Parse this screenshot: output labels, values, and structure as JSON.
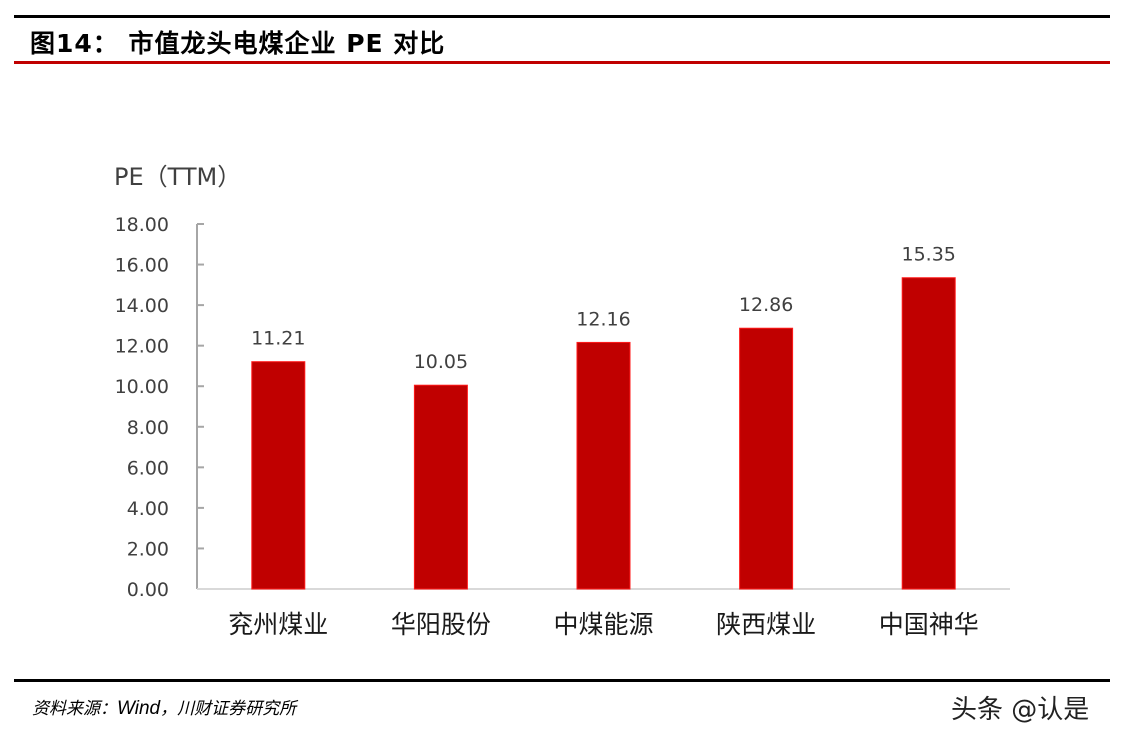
{
  "header": {
    "title": "图14：  市值龙头电煤企业 PE 对比"
  },
  "footer": {
    "source_prefix": "资料来源：",
    "source_wind": "Wind",
    "source_suffix": "，川财证券研究所",
    "watermark": "头条 @认是"
  },
  "colors": {
    "bar": "#c00000",
    "bar_edge": "#ff1a1a",
    "axis": "#a6a6a6",
    "text": "#404040",
    "rule_red": "#c00000"
  },
  "chart_data": {
    "type": "bar",
    "title": "市值龙头电煤企业 PE 对比",
    "xlabel": "",
    "ylabel": "PE（TTM）",
    "categories": [
      "兖州煤业",
      "华阳股份",
      "中煤能源",
      "陕西煤业",
      "中国神华"
    ],
    "values": [
      11.21,
      10.05,
      12.16,
      12.86,
      15.35
    ],
    "data_labels": [
      "11.21",
      "10.05",
      "12.16",
      "12.86",
      "15.35"
    ],
    "ylim": [
      0,
      18
    ],
    "yticks": [
      "0.00",
      "2.00",
      "4.00",
      "6.00",
      "8.00",
      "10.00",
      "12.00",
      "14.00",
      "16.00",
      "18.00"
    ],
    "grid": false,
    "legend": "none"
  }
}
